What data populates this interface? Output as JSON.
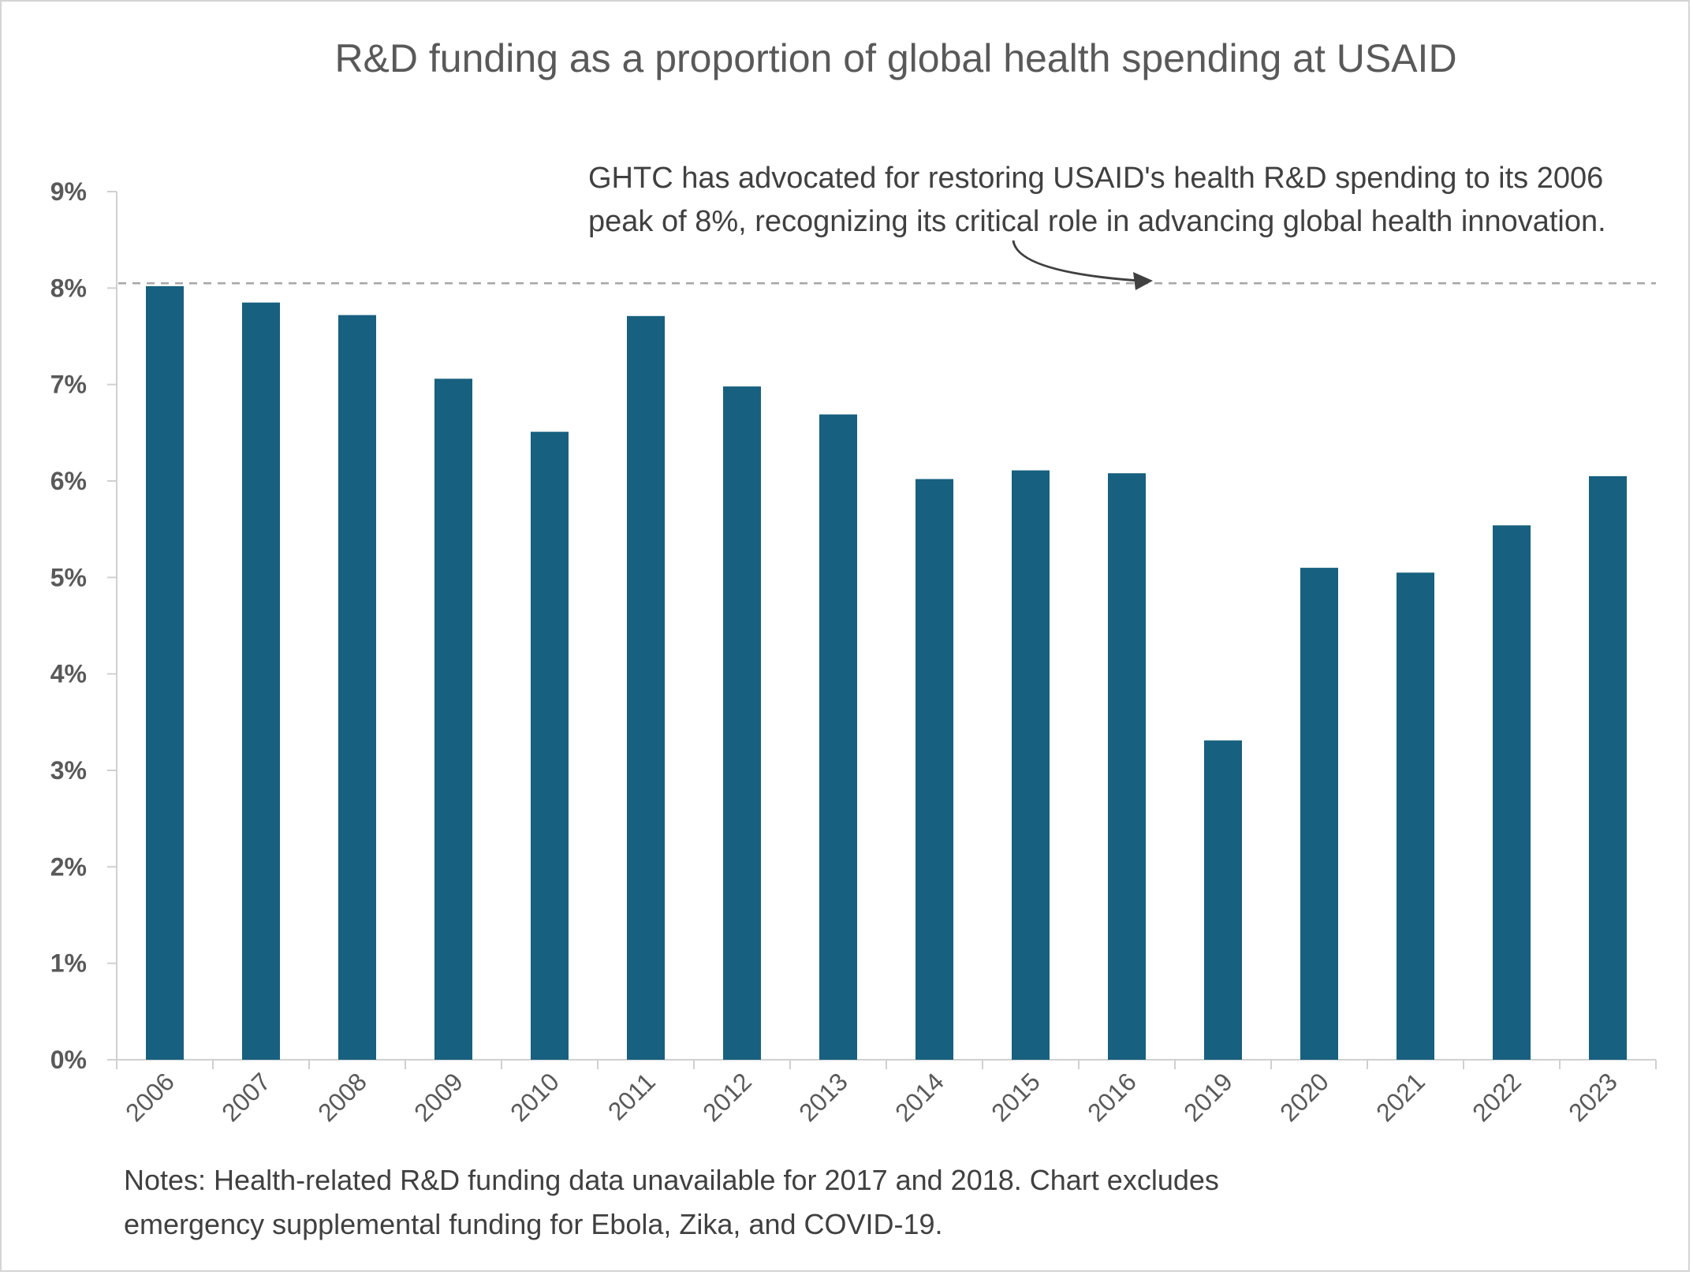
{
  "chart_data": {
    "type": "bar",
    "title": "R&D funding as a proportion of global health spending at USAID",
    "xlabel": "",
    "ylabel": "",
    "ylim": [
      0,
      9
    ],
    "yticks": [
      "0%",
      "1%",
      "2%",
      "3%",
      "4%",
      "5%",
      "6%",
      "7%",
      "8%",
      "9%"
    ],
    "categories": [
      "2006",
      "2007",
      "2008",
      "2009",
      "2010",
      "2011",
      "2012",
      "2013",
      "2014",
      "2015",
      "2016",
      "2019",
      "2020",
      "2021",
      "2022",
      "2023"
    ],
    "values": [
      8.02,
      7.85,
      7.72,
      7.06,
      6.51,
      7.71,
      6.98,
      6.69,
      6.02,
      6.11,
      6.08,
      3.31,
      5.1,
      5.05,
      5.54,
      6.05
    ],
    "bar_color": "#17607f",
    "reference_line": {
      "value": 8.05,
      "style": "dashed",
      "color": "#a6a6a6"
    },
    "annotation": {
      "lines": [
        "GHTC has advocated for restoring USAID's health R&D spending to its 2006",
        "peak of 8%, recognizing its critical role in advancing global health innovation."
      ]
    },
    "notes": [
      "Notes: Health-related R&D funding data unavailable for 2017 and 2018. Chart excludes",
      "emergency supplemental funding for Ebola, Zika, and COVID-19."
    ],
    "grid": false,
    "legend": "none"
  }
}
